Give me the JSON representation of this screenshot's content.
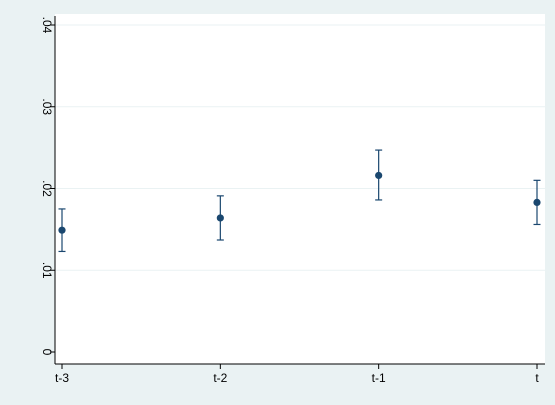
{
  "chart_data": {
    "type": "scatter",
    "subtype": "point estimates with error bars",
    "categories": [
      "t-3",
      "t-2",
      "t-1",
      "t"
    ],
    "series": [
      {
        "values": [
          0.0149,
          0.0164,
          0.0216,
          0.0183
        ],
        "lower": [
          0.0123,
          0.0137,
          0.0186,
          0.0156
        ],
        "upper": [
          0.0175,
          0.0191,
          0.0247,
          0.021
        ],
        "color": "#1a476f"
      }
    ],
    "yticks": [
      0,
      0.01,
      0.02,
      0.03,
      0.04
    ],
    "ytick_labels": [
      "0",
      ".01",
      ".02",
      ".03",
      ".04"
    ],
    "ylim": [
      0,
      0.04
    ],
    "title": "",
    "xlabel": "",
    "ylabel": "",
    "grid": true,
    "legend": "none",
    "colors": {
      "background": "#eaf2f3",
      "plot_background": "#ffffff",
      "gridline": "#eaf2f3",
      "marker": "#1a476f"
    }
  }
}
